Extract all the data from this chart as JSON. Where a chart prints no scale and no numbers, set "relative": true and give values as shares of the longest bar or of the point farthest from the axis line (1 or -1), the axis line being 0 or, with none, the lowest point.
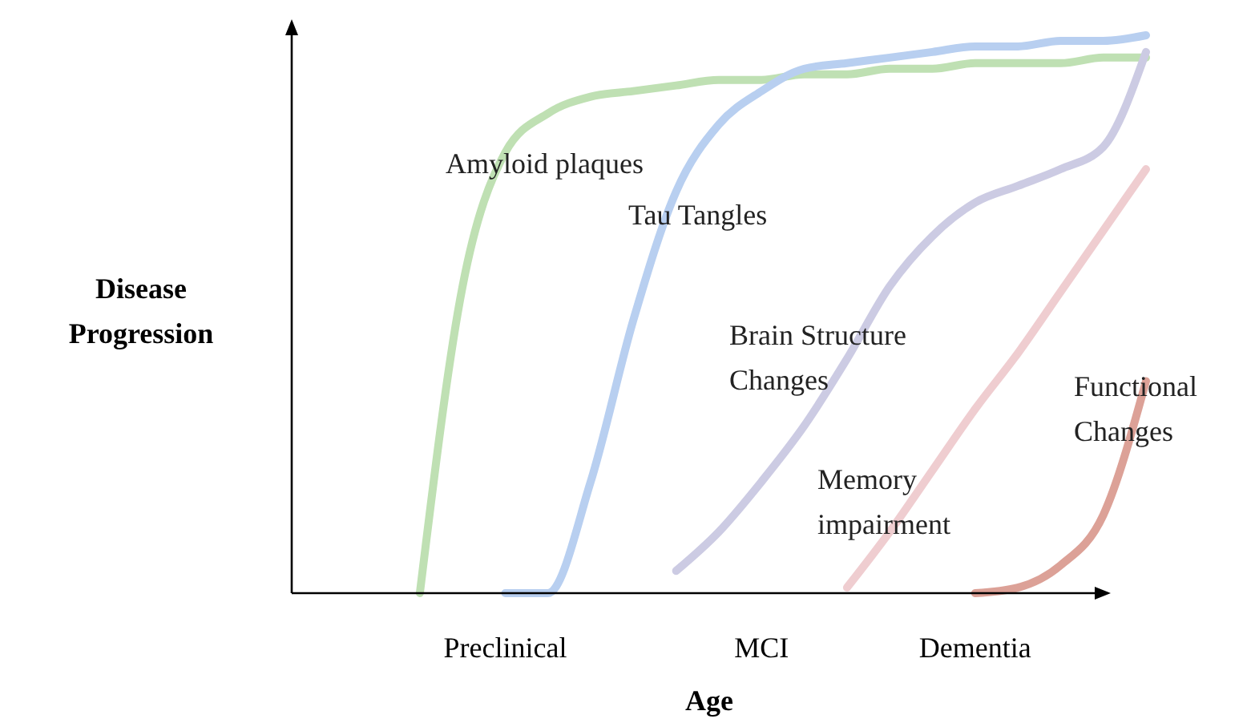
{
  "chart_data": {
    "type": "line",
    "relative": true,
    "xlabel": "Age",
    "ylabel": "Disease Progression",
    "legend": false,
    "marker": "none",
    "line_style": "solid",
    "categories": [
      null,
      null,
      null,
      null,
      null,
      "Preclinical",
      null,
      null,
      null,
      null,
      null,
      "MCI",
      null,
      null,
      null,
      null,
      "Dementia",
      null,
      null,
      null,
      null
    ],
    "series": [
      {
        "name": "Amyloid plaques",
        "color": "#bfe0b3",
        "values": [
          null,
          null,
          null,
          0,
          0.55,
          0.79,
          0.86,
          0.89,
          0.9,
          0.91,
          0.92,
          0.92,
          0.93,
          0.93,
          0.94,
          0.94,
          0.95,
          0.95,
          0.95,
          0.96,
          0.96
        ]
      },
      {
        "name": "Tau Tangles",
        "color": "#b8cff0",
        "values": [
          null,
          null,
          null,
          null,
          null,
          0,
          0,
          0.2,
          0.49,
          0.72,
          0.84,
          0.9,
          0.94,
          0.95,
          0.96,
          0.97,
          0.98,
          0.98,
          0.99,
          0.99,
          1
        ]
      },
      {
        "name": "Brain Structure Changes",
        "color": "#cccbe3",
        "values": [
          null,
          null,
          null,
          null,
          null,
          null,
          null,
          null,
          null,
          0.04,
          0.11,
          0.2,
          0.3,
          0.42,
          0.55,
          0.64,
          0.7,
          0.73,
          0.76,
          0.8,
          0.97
        ]
      },
      {
        "name": "Memory impairment",
        "color": "#efcdd0",
        "values": [
          null,
          null,
          null,
          null,
          null,
          null,
          null,
          null,
          null,
          null,
          null,
          null,
          null,
          0.01,
          0.11,
          0.22,
          0.33,
          0.43,
          0.54,
          0.65,
          0.76
        ]
      },
      {
        "name": "Functional Changes",
        "color": "#dca197",
        "values": [
          null,
          null,
          null,
          null,
          null,
          null,
          null,
          null,
          null,
          null,
          null,
          null,
          null,
          null,
          null,
          null,
          0,
          0.01,
          0.05,
          0.14,
          0.38
        ]
      }
    ]
  }
}
